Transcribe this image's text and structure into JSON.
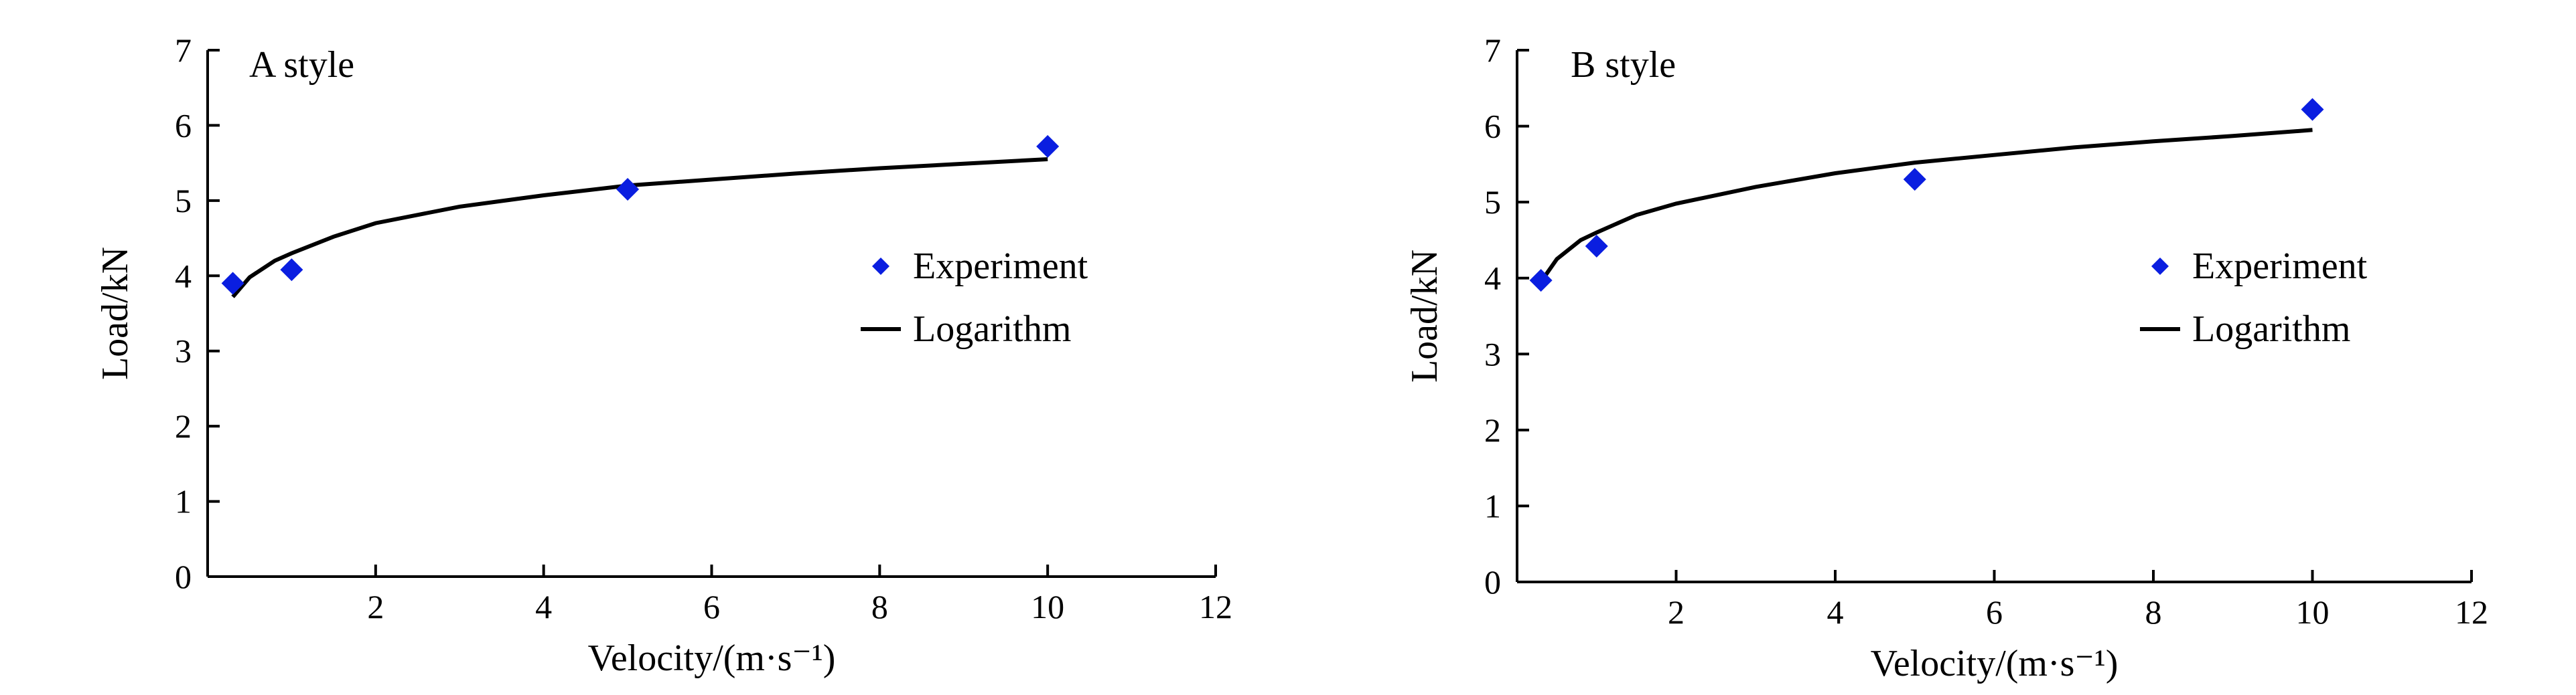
{
  "chart_data": [
    {
      "type": "scatter",
      "panel_label": "A style",
      "xlabel": "Velocity/(m·s⁻¹)",
      "ylabel": "Load/kN",
      "xlim": [
        0,
        12
      ],
      "ylim": [
        0,
        7
      ],
      "xticks": [
        2,
        4,
        6,
        8,
        10,
        12
      ],
      "yticks": [
        0,
        1,
        2,
        3,
        4,
        5,
        6,
        7
      ],
      "grid": false,
      "legend_position": "right",
      "legend": [
        "Experiment",
        "Logarithm"
      ],
      "series": [
        {
          "name": "Experiment",
          "kind": "scatter",
          "marker": "diamond",
          "color": "#0a1ee0",
          "x": [
            0.3,
            1.0,
            5.0,
            10.0
          ],
          "y": [
            3.9,
            4.08,
            5.15,
            5.72
          ]
        },
        {
          "name": "Logarithm",
          "kind": "line",
          "color": "#000000",
          "x": [
            0.3,
            0.5,
            0.8,
            1.0,
            1.5,
            2.0,
            3.0,
            4.0,
            5.0,
            6.0,
            7.0,
            8.0,
            9.0,
            10.0
          ],
          "y": [
            3.72,
            3.98,
            4.2,
            4.3,
            4.52,
            4.7,
            4.92,
            5.07,
            5.2,
            5.28,
            5.36,
            5.43,
            5.49,
            5.55
          ]
        }
      ]
    },
    {
      "type": "scatter",
      "panel_label": "B style",
      "xlabel": "Velocity/(m·s⁻¹)",
      "ylabel": "Load/kN",
      "xlim": [
        0,
        12
      ],
      "ylim": [
        0,
        7
      ],
      "xticks": [
        2,
        4,
        6,
        8,
        10,
        12
      ],
      "yticks": [
        0,
        1,
        2,
        3,
        4,
        5,
        6,
        7
      ],
      "grid": false,
      "legend_position": "right",
      "legend": [
        "Experiment",
        "Logarithm"
      ],
      "series": [
        {
          "name": "Experiment",
          "kind": "scatter",
          "marker": "diamond",
          "color": "#0a1ee0",
          "x": [
            0.3,
            1.0,
            5.0,
            10.0
          ],
          "y": [
            3.97,
            4.42,
            5.3,
            6.22
          ]
        },
        {
          "name": "Logarithm",
          "kind": "line",
          "color": "#000000",
          "x": [
            0.3,
            0.5,
            0.8,
            1.0,
            1.5,
            2.0,
            3.0,
            4.0,
            5.0,
            6.0,
            7.0,
            8.0,
            9.0,
            10.0
          ],
          "y": [
            3.95,
            4.25,
            4.5,
            4.6,
            4.83,
            4.98,
            5.2,
            5.38,
            5.52,
            5.62,
            5.72,
            5.8,
            5.87,
            5.95
          ]
        }
      ]
    }
  ]
}
